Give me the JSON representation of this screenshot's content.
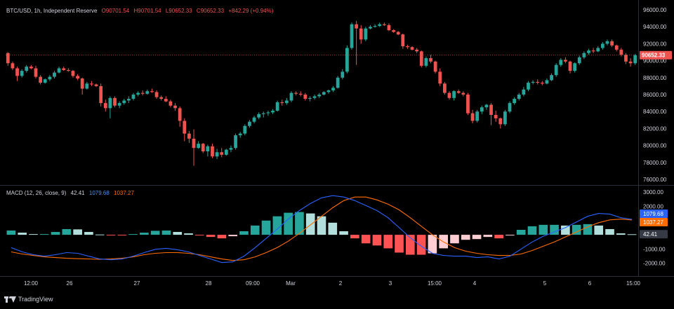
{
  "header": {
    "symbol": "BTC/USD, 1h, Independent Reserve",
    "open": "O90701.54",
    "high": "H90701.54",
    "low": "L90652.33",
    "close": "C90652.33",
    "change": "+842.29 (+0.94%)"
  },
  "macd_header": {
    "name": "MACD (12, 26, close, 9)",
    "hist": "42.41",
    "macd": "1079.68",
    "signal": "1037.27"
  },
  "branding": {
    "name": "TradingView"
  },
  "colors": {
    "background": "#000000",
    "bull": "#26a69a",
    "bear": "#ef5350",
    "hist_up_strong": "#26a69a",
    "hist_up_weak": "#b2dfdb",
    "hist_down_strong": "#ff5252",
    "hist_down_weak": "#ffcdd2",
    "macd_line": "#2962ff",
    "signal_line": "#ff6d00",
    "text": "#d1d4dc",
    "grid": "#1e222d"
  },
  "chart_data": [
    {
      "type": "candlestick",
      "title": "BTC/USD, 1h, Independent Reserve",
      "ylim": [
        75500,
        96500
      ],
      "y_ticks": [
        "96000.00",
        "94000.00",
        "92000.00",
        "90000.00",
        "88000.00",
        "86000.00",
        "84000.00",
        "82000.00",
        "80000.00",
        "78000.00",
        "76000.00"
      ],
      "last_price": "90652.33",
      "x_ticks": [
        "12:00",
        "26",
        "27",
        "28",
        "09:00",
        "Mar",
        "2",
        "3",
        "15:00",
        "4",
        "5",
        "6",
        "15:00"
      ],
      "candles": [
        {
          "o": 90900,
          "h": 91000,
          "l": 89400,
          "c": 89700
        },
        {
          "o": 89700,
          "h": 89900,
          "l": 88900,
          "c": 89100
        },
        {
          "o": 89100,
          "h": 89300,
          "l": 87600,
          "c": 88200
        },
        {
          "o": 88200,
          "h": 89000,
          "l": 88000,
          "c": 88800
        },
        {
          "o": 88800,
          "h": 89500,
          "l": 88600,
          "c": 89300
        },
        {
          "o": 89300,
          "h": 89500,
          "l": 89000,
          "c": 89100
        },
        {
          "o": 89100,
          "h": 89400,
          "l": 87900,
          "c": 88100
        },
        {
          "o": 88100,
          "h": 88300,
          "l": 87200,
          "c": 87400
        },
        {
          "o": 87400,
          "h": 87900,
          "l": 87300,
          "c": 87800
        },
        {
          "o": 87800,
          "h": 88300,
          "l": 87600,
          "c": 88100
        },
        {
          "o": 88100,
          "h": 88800,
          "l": 87900,
          "c": 88600
        },
        {
          "o": 88600,
          "h": 89300,
          "l": 88500,
          "c": 89100
        },
        {
          "o": 89100,
          "h": 89300,
          "l": 88800,
          "c": 88900
        },
        {
          "o": 88900,
          "h": 89100,
          "l": 88700,
          "c": 88800
        },
        {
          "o": 88800,
          "h": 88900,
          "l": 88000,
          "c": 88200
        },
        {
          "o": 88200,
          "h": 88400,
          "l": 87700,
          "c": 87900
        },
        {
          "o": 87900,
          "h": 88000,
          "l": 86000,
          "c": 86700
        },
        {
          "o": 86700,
          "h": 87500,
          "l": 86600,
          "c": 87300
        },
        {
          "o": 87300,
          "h": 87600,
          "l": 87000,
          "c": 87200
        },
        {
          "o": 87200,
          "h": 87300,
          "l": 86900,
          "c": 87000
        },
        {
          "o": 87000,
          "h": 87300,
          "l": 84600,
          "c": 85000
        },
        {
          "o": 85000,
          "h": 85400,
          "l": 84000,
          "c": 84400
        },
        {
          "o": 84400,
          "h": 85800,
          "l": 83200,
          "c": 85600
        },
        {
          "o": 85600,
          "h": 85800,
          "l": 84500,
          "c": 84700
        },
        {
          "o": 84700,
          "h": 85200,
          "l": 84400,
          "c": 85000
        },
        {
          "o": 85000,
          "h": 85500,
          "l": 84800,
          "c": 85300
        },
        {
          "o": 85300,
          "h": 85800,
          "l": 85000,
          "c": 85500
        },
        {
          "o": 85500,
          "h": 86200,
          "l": 85300,
          "c": 86000
        },
        {
          "o": 86000,
          "h": 86400,
          "l": 85800,
          "c": 86200
        },
        {
          "o": 86200,
          "h": 86500,
          "l": 85900,
          "c": 86100
        },
        {
          "o": 86100,
          "h": 86600,
          "l": 86000,
          "c": 86400
        },
        {
          "o": 86400,
          "h": 86700,
          "l": 86200,
          "c": 86300
        },
        {
          "o": 86300,
          "h": 86500,
          "l": 85500,
          "c": 85700
        },
        {
          "o": 85700,
          "h": 85900,
          "l": 85300,
          "c": 85500
        },
        {
          "o": 85500,
          "h": 85800,
          "l": 85100,
          "c": 85200
        },
        {
          "o": 85200,
          "h": 85400,
          "l": 84500,
          "c": 84700
        },
        {
          "o": 84700,
          "h": 85000,
          "l": 84100,
          "c": 84400
        },
        {
          "o": 84400,
          "h": 84600,
          "l": 82200,
          "c": 82900
        },
        {
          "o": 82900,
          "h": 83200,
          "l": 80500,
          "c": 81400
        },
        {
          "o": 81400,
          "h": 81700,
          "l": 80300,
          "c": 80800
        },
        {
          "o": 80800,
          "h": 81900,
          "l": 77600,
          "c": 79700
        },
        {
          "o": 79700,
          "h": 80500,
          "l": 79600,
          "c": 80200
        },
        {
          "o": 80200,
          "h": 80300,
          "l": 79100,
          "c": 79300
        },
        {
          "o": 79300,
          "h": 80100,
          "l": 78700,
          "c": 79900
        },
        {
          "o": 79900,
          "h": 80200,
          "l": 78500,
          "c": 78700
        },
        {
          "o": 78700,
          "h": 79600,
          "l": 78400,
          "c": 79200
        },
        {
          "o": 79200,
          "h": 79700,
          "l": 78600,
          "c": 78900
        },
        {
          "o": 78900,
          "h": 79600,
          "l": 78800,
          "c": 79500
        },
        {
          "o": 79500,
          "h": 80000,
          "l": 79200,
          "c": 79700
        },
        {
          "o": 79700,
          "h": 81400,
          "l": 79500,
          "c": 81200
        },
        {
          "o": 81200,
          "h": 81600,
          "l": 80900,
          "c": 81400
        },
        {
          "o": 81400,
          "h": 82500,
          "l": 81200,
          "c": 82300
        },
        {
          "o": 82300,
          "h": 83000,
          "l": 82100,
          "c": 82800
        },
        {
          "o": 82800,
          "h": 83500,
          "l": 82600,
          "c": 83300
        },
        {
          "o": 83300,
          "h": 83900,
          "l": 83100,
          "c": 83700
        },
        {
          "o": 83700,
          "h": 84000,
          "l": 83300,
          "c": 83800
        },
        {
          "o": 83800,
          "h": 84100,
          "l": 83500,
          "c": 83900
        },
        {
          "o": 83900,
          "h": 84300,
          "l": 83700,
          "c": 84100
        },
        {
          "o": 84100,
          "h": 85300,
          "l": 84000,
          "c": 85100
        },
        {
          "o": 85100,
          "h": 85400,
          "l": 84700,
          "c": 85000
        },
        {
          "o": 85000,
          "h": 85600,
          "l": 84800,
          "c": 85300
        },
        {
          "o": 85300,
          "h": 86400,
          "l": 85100,
          "c": 86200
        },
        {
          "o": 86200,
          "h": 86400,
          "l": 85900,
          "c": 86100
        },
        {
          "o": 86100,
          "h": 86400,
          "l": 85800,
          "c": 86000
        },
        {
          "o": 86000,
          "h": 86200,
          "l": 85300,
          "c": 85500
        },
        {
          "o": 85500,
          "h": 85800,
          "l": 85200,
          "c": 85600
        },
        {
          "o": 85600,
          "h": 86000,
          "l": 85400,
          "c": 85800
        },
        {
          "o": 85800,
          "h": 86200,
          "l": 85600,
          "c": 86000
        },
        {
          "o": 86000,
          "h": 86400,
          "l": 85900,
          "c": 86300
        },
        {
          "o": 86300,
          "h": 86600,
          "l": 86100,
          "c": 86500
        },
        {
          "o": 86500,
          "h": 87000,
          "l": 86300,
          "c": 86800
        },
        {
          "o": 86800,
          "h": 88200,
          "l": 86700,
          "c": 88000
        },
        {
          "o": 88000,
          "h": 89000,
          "l": 87800,
          "c": 88700
        },
        {
          "o": 88700,
          "h": 91800,
          "l": 88500,
          "c": 91500
        },
        {
          "o": 91500,
          "h": 94500,
          "l": 91300,
          "c": 94300
        },
        {
          "o": 94300,
          "h": 94700,
          "l": 89500,
          "c": 93800
        },
        {
          "o": 93800,
          "h": 94200,
          "l": 92000,
          "c": 92500
        },
        {
          "o": 92500,
          "h": 94000,
          "l": 92300,
          "c": 93800
        },
        {
          "o": 93800,
          "h": 94200,
          "l": 93700,
          "c": 94000
        },
        {
          "o": 94000,
          "h": 94300,
          "l": 93900,
          "c": 94100
        },
        {
          "o": 94100,
          "h": 94500,
          "l": 94000,
          "c": 94300
        },
        {
          "o": 94300,
          "h": 94500,
          "l": 94100,
          "c": 94200
        },
        {
          "o": 94200,
          "h": 94400,
          "l": 93500,
          "c": 93600
        },
        {
          "o": 93600,
          "h": 93700,
          "l": 93300,
          "c": 93400
        },
        {
          "o": 93400,
          "h": 93500,
          "l": 93000,
          "c": 93100
        },
        {
          "o": 93100,
          "h": 93200,
          "l": 91400,
          "c": 91700
        },
        {
          "o": 91700,
          "h": 91900,
          "l": 91400,
          "c": 91600
        },
        {
          "o": 91600,
          "h": 91700,
          "l": 91200,
          "c": 91300
        },
        {
          "o": 91300,
          "h": 91500,
          "l": 90900,
          "c": 91100
        },
        {
          "o": 91100,
          "h": 91200,
          "l": 89200,
          "c": 89400
        },
        {
          "o": 89400,
          "h": 90500,
          "l": 89200,
          "c": 90300
        },
        {
          "o": 90300,
          "h": 90700,
          "l": 89700,
          "c": 89900
        },
        {
          "o": 89900,
          "h": 90000,
          "l": 88500,
          "c": 88700
        },
        {
          "o": 88700,
          "h": 89100,
          "l": 87000,
          "c": 87300
        },
        {
          "o": 87300,
          "h": 87500,
          "l": 86000,
          "c": 86200
        },
        {
          "o": 86200,
          "h": 86400,
          "l": 85400,
          "c": 85600
        },
        {
          "o": 85600,
          "h": 86500,
          "l": 85300,
          "c": 86400
        },
        {
          "o": 86400,
          "h": 86600,
          "l": 86100,
          "c": 86200
        },
        {
          "o": 86200,
          "h": 86400,
          "l": 85800,
          "c": 86000
        },
        {
          "o": 86000,
          "h": 86200,
          "l": 83600,
          "c": 83800
        },
        {
          "o": 83800,
          "h": 84200,
          "l": 82600,
          "c": 82900
        },
        {
          "o": 82900,
          "h": 84200,
          "l": 82700,
          "c": 84000
        },
        {
          "o": 84000,
          "h": 84700,
          "l": 83700,
          "c": 84500
        },
        {
          "o": 84500,
          "h": 84900,
          "l": 84200,
          "c": 84800
        },
        {
          "o": 84800,
          "h": 85000,
          "l": 82400,
          "c": 83600
        },
        {
          "o": 83600,
          "h": 84100,
          "l": 82800,
          "c": 83200
        },
        {
          "o": 83200,
          "h": 83300,
          "l": 82000,
          "c": 82500
        },
        {
          "o": 82500,
          "h": 84200,
          "l": 82300,
          "c": 84000
        },
        {
          "o": 84000,
          "h": 85200,
          "l": 83800,
          "c": 85000
        },
        {
          "o": 85000,
          "h": 85700,
          "l": 84800,
          "c": 85500
        },
        {
          "o": 85500,
          "h": 86200,
          "l": 85300,
          "c": 86000
        },
        {
          "o": 86000,
          "h": 86900,
          "l": 85800,
          "c": 86600
        },
        {
          "o": 86600,
          "h": 87600,
          "l": 86400,
          "c": 87400
        },
        {
          "o": 87400,
          "h": 87700,
          "l": 87200,
          "c": 87500
        },
        {
          "o": 87500,
          "h": 87800,
          "l": 87200,
          "c": 87400
        },
        {
          "o": 87400,
          "h": 87600,
          "l": 87100,
          "c": 87300
        },
        {
          "o": 87300,
          "h": 87900,
          "l": 87200,
          "c": 87700
        },
        {
          "o": 87700,
          "h": 88500,
          "l": 87600,
          "c": 88300
        },
        {
          "o": 88300,
          "h": 89700,
          "l": 88100,
          "c": 89500
        },
        {
          "o": 89500,
          "h": 90300,
          "l": 89300,
          "c": 90100
        },
        {
          "o": 90100,
          "h": 90400,
          "l": 89700,
          "c": 89900
        },
        {
          "o": 89900,
          "h": 90000,
          "l": 88500,
          "c": 88800
        },
        {
          "o": 88800,
          "h": 89800,
          "l": 88600,
          "c": 89700
        },
        {
          "o": 89700,
          "h": 90600,
          "l": 89500,
          "c": 90400
        },
        {
          "o": 90400,
          "h": 91100,
          "l": 90200,
          "c": 90900
        },
        {
          "o": 90900,
          "h": 91400,
          "l": 90700,
          "c": 91200
        },
        {
          "o": 91200,
          "h": 91500,
          "l": 90900,
          "c": 91100
        },
        {
          "o": 91100,
          "h": 91700,
          "l": 91000,
          "c": 91500
        },
        {
          "o": 91500,
          "h": 92200,
          "l": 91300,
          "c": 92000
        },
        {
          "o": 92000,
          "h": 92500,
          "l": 91800,
          "c": 92300
        },
        {
          "o": 92300,
          "h": 92500,
          "l": 91600,
          "c": 91800
        },
        {
          "o": 91800,
          "h": 91900,
          "l": 91100,
          "c": 91300
        },
        {
          "o": 91300,
          "h": 91500,
          "l": 90500,
          "c": 90700
        },
        {
          "o": 90700,
          "h": 90900,
          "l": 89600,
          "c": 89900
        },
        {
          "o": 89900,
          "h": 90300,
          "l": 89300,
          "c": 89700
        },
        {
          "o": 89700,
          "h": 90800,
          "l": 89500,
          "c": 90650
        }
      ]
    },
    {
      "type": "line",
      "title": "MACD (12, 26, close, 9)",
      "ylim": [
        -2800,
        3400
      ],
      "y_ticks": [
        "3000.00",
        "2000.00",
        "1000.00",
        "-1000.00",
        "-2000.00"
      ],
      "last_values": [
        "1079.68",
        "1037.27",
        "42.41"
      ],
      "series": [
        {
          "name": "MACD",
          "values": [
            -900,
            -1200,
            -1400,
            -1500,
            -1400,
            -1250,
            -1300,
            -1500,
            -1700,
            -1750,
            -1700,
            -1500,
            -1250,
            -1020,
            -950,
            -1050,
            -1200,
            -1450,
            -1700,
            -1950,
            -1900,
            -1500,
            -900,
            -250,
            400,
            1100,
            1700,
            2200,
            2600,
            2750,
            2650,
            2400,
            2050,
            1700,
            1200,
            500,
            -200,
            -800,
            -1300,
            -1450,
            -1500,
            -1500,
            -1600,
            -1550,
            -1700,
            -1500,
            -1000,
            -500,
            -100,
            200,
            500,
            900,
            1300,
            1500,
            1450,
            1200,
            1080
          ]
        },
        {
          "name": "Signal",
          "values": [
            -1200,
            -1350,
            -1450,
            -1550,
            -1600,
            -1650,
            -1680,
            -1700,
            -1720,
            -1700,
            -1650,
            -1550,
            -1400,
            -1300,
            -1250,
            -1250,
            -1300,
            -1400,
            -1550,
            -1700,
            -1800,
            -1750,
            -1550,
            -1250,
            -900,
            -450,
            100,
            700,
            1300,
            1900,
            2400,
            2650,
            2650,
            2450,
            2150,
            1750,
            1200,
            600,
            0,
            -500,
            -900,
            -1150,
            -1300,
            -1400,
            -1450,
            -1450,
            -1350,
            -1100,
            -800,
            -500,
            -150,
            200,
            550,
            850,
            1050,
            1100,
            1040
          ]
        }
      ]
    }
  ]
}
